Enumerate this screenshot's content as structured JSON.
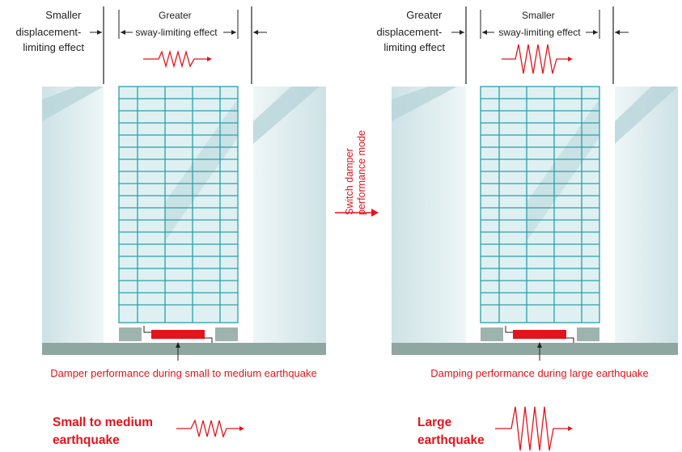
{
  "left_panel": {
    "top_left_label": [
      "Smaller",
      "displacement-",
      "limiting effect"
    ],
    "top_center_label": [
      "Greater",
      "sway-limiting effect"
    ],
    "caption": "Damper performance during small to medium earthquake",
    "quake_label": [
      "Small to medium",
      "earthquake"
    ]
  },
  "middle": {
    "switch_label": [
      "Switch damper",
      "performance mode"
    ]
  },
  "right_panel": {
    "top_left_label": [
      "Greater",
      "displacement-",
      "limiting effect"
    ],
    "top_center_label": [
      "Smaller",
      "sway-limiting effect"
    ],
    "caption": "Damping performance during large earthquake",
    "quake_label": [
      "Large",
      "earthquake"
    ]
  },
  "colors": {
    "accent_red": "#e3141c",
    "grid_teal": "#2aa0a8",
    "glass": "#cfe3e6",
    "glass_stripe": "#b5d3d8",
    "ground": "#8fa7a1",
    "base_block": "#9fb3ae"
  }
}
